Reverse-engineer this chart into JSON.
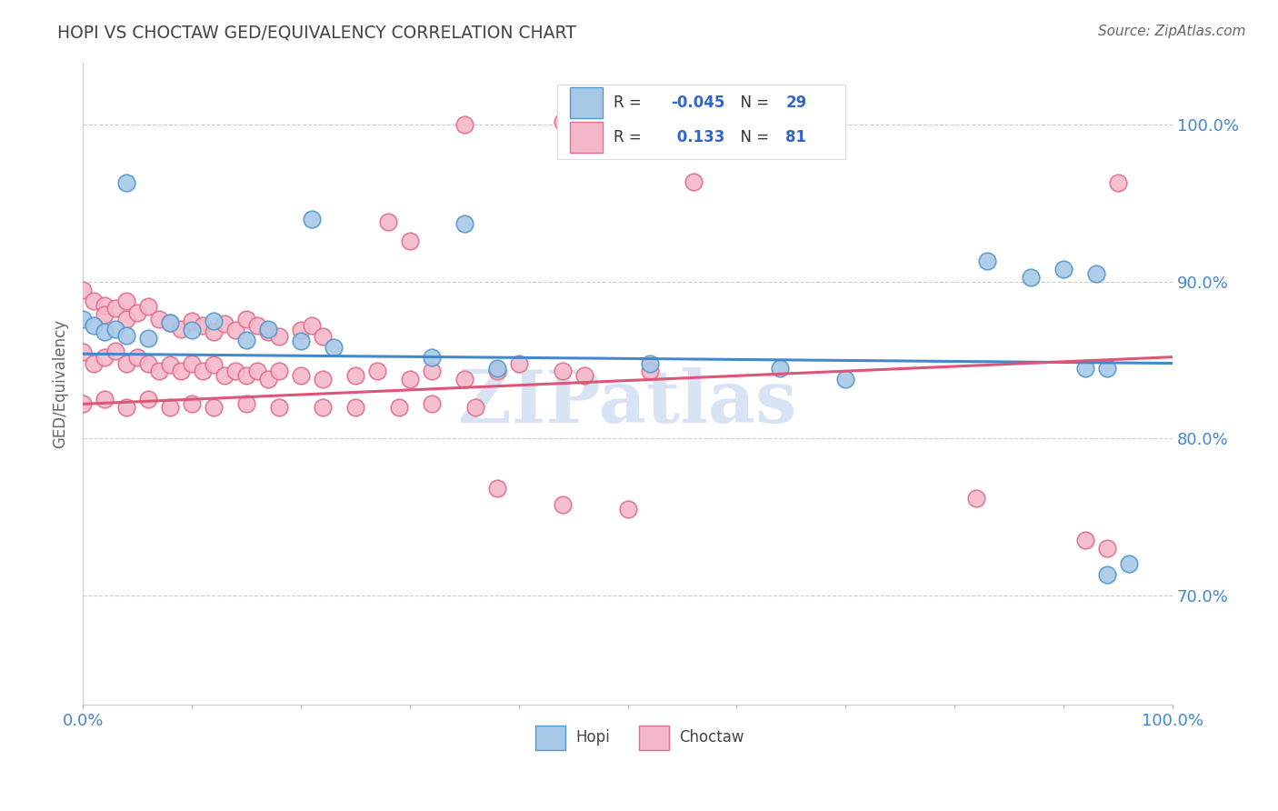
{
  "title": "HOPI VS CHOCTAW GED/EQUIVALENCY CORRELATION CHART",
  "ylabel": "GED/Equivalency",
  "source": "Source: ZipAtlas.com",
  "xlim": [
    0.0,
    1.0
  ],
  "ylim": [
    0.63,
    1.04
  ],
  "yticks": [
    0.7,
    0.8,
    0.9,
    1.0
  ],
  "ytick_labels": [
    "70.0%",
    "80.0%",
    "90.0%",
    "100.0%"
  ],
  "hopi_color": "#a8c8e8",
  "choctaw_color": "#f5b8c8",
  "hopi_edge_color": "#5599cc",
  "choctaw_edge_color": "#e07090",
  "hopi_line_color": "#4488cc",
  "choctaw_line_color": "#dd5577",
  "R_hopi": -0.045,
  "N_hopi": 29,
  "R_choctaw": 0.133,
  "N_choctaw": 81,
  "hopi_trend_x0": 0.0,
  "hopi_trend_y0": 0.854,
  "hopi_trend_x1": 1.0,
  "hopi_trend_y1": 0.848,
  "choctaw_trend_x0": 0.0,
  "choctaw_trend_y0": 0.822,
  "choctaw_trend_x1": 1.0,
  "choctaw_trend_y1": 0.852,
  "watermark": "ZIPatlas",
  "watermark_color": "#c8d8ee",
  "legend_label1": "R = -0.045   N = 29",
  "legend_label2": "R =  0.133   N = 81"
}
